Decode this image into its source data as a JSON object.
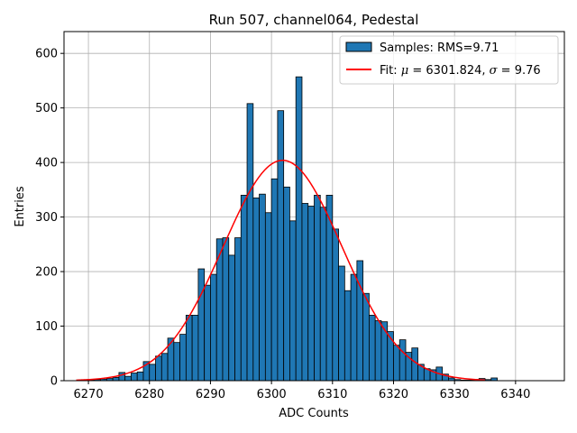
{
  "chart_data": {
    "type": "bar",
    "title": "Run 507, channel064, Pedestal",
    "xlabel": "ADC Counts",
    "ylabel": "Entries",
    "xlim": [
      6266,
      6348
    ],
    "ylim": [
      0,
      640
    ],
    "xticks": [
      6270,
      6280,
      6290,
      6300,
      6310,
      6320,
      6330,
      6340
    ],
    "yticks": [
      0,
      100,
      200,
      300,
      400,
      500,
      600
    ],
    "grid": true,
    "legend_position": "top-right",
    "bin_width": 1,
    "histogram": {
      "name": "Samples: RMS=9.71",
      "color": "#1f77b4",
      "edge_color": "#000000",
      "bins": [
        6270,
        6271,
        6272,
        6273,
        6274,
        6275,
        6276,
        6277,
        6278,
        6279,
        6280,
        6281,
        6282,
        6283,
        6284,
        6285,
        6286,
        6287,
        6288,
        6289,
        6290,
        6291,
        6292,
        6293,
        6294,
        6295,
        6296,
        6297,
        6298,
        6299,
        6300,
        6301,
        6302,
        6303,
        6304,
        6305,
        6306,
        6307,
        6308,
        6309,
        6310,
        6311,
        6312,
        6313,
        6314,
        6315,
        6316,
        6317,
        6318,
        6319,
        6320,
        6321,
        6322,
        6323,
        6324,
        6325,
        6326,
        6327,
        6328,
        6329,
        6330,
        6331,
        6332,
        6333,
        6334,
        6335,
        6336
      ],
      "values": [
        1,
        2,
        3,
        4,
        6,
        15,
        8,
        14,
        16,
        35,
        30,
        45,
        50,
        78,
        70,
        85,
        120,
        120,
        205,
        175,
        195,
        260,
        262,
        230,
        262,
        340,
        508,
        335,
        342,
        308,
        370,
        495,
        355,
        293,
        557,
        325,
        320,
        340,
        318,
        340,
        278,
        210,
        165,
        195,
        220,
        160,
        120,
        110,
        108,
        90,
        65,
        75,
        52,
        60,
        30,
        22,
        20,
        25,
        12,
        5,
        2,
        1,
        1,
        1,
        4,
        2,
        5
      ]
    },
    "fit": {
      "name": "Fit: μ = 6301.824, σ = 9.76",
      "color": "#ff0000",
      "mu": 6301.824,
      "sigma": 9.76,
      "amplitude": 404,
      "x_range": [
        6268,
        6335
      ]
    }
  },
  "legend": {
    "samples_label": "Samples: RMS=9.71",
    "fit_label_prefix": "Fit: ",
    "fit_mu_symbol": "μ",
    "fit_mu_text": " = 6301.824, ",
    "fit_sigma_symbol": "σ",
    "fit_sigma_text": " = 9.76"
  }
}
